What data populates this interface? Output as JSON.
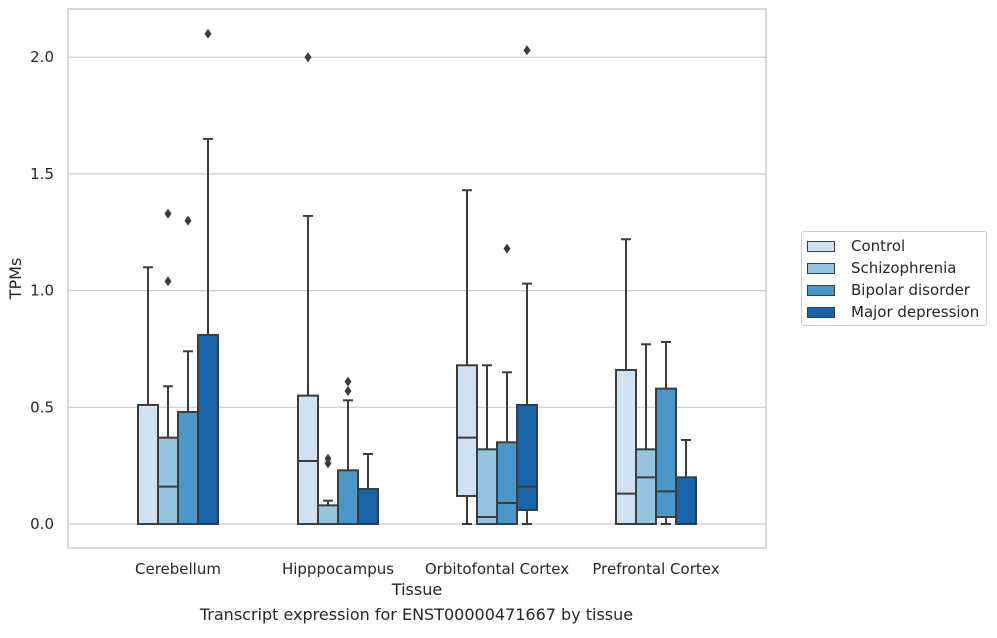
{
  "caption": "Transcript expression for ENST00000471667 by tissue",
  "chart_data": {
    "type": "box",
    "title": "",
    "xlabel": "Tissue",
    "ylabel": "TPMs",
    "ylim": [
      -0.1,
      2.22
    ],
    "yticks": [
      "0.0",
      "0.5",
      "1.0",
      "1.5",
      "2.0"
    ],
    "ytick_values": [
      0.0,
      0.5,
      1.0,
      1.5,
      2.0
    ],
    "grid": "horizontal",
    "legend_position": "right",
    "categories": [
      "Cerebellum",
      "Hipppocampus",
      "Orbitofontal Cortex",
      "Prefrontal Cortex"
    ],
    "series": [
      {
        "name": "Control",
        "color": "#d0e1f2",
        "boxes": [
          {
            "whislo": 0.0,
            "q1": 0.0,
            "med": 0.0,
            "q3": 0.51,
            "whishi": 1.1,
            "fliers": []
          },
          {
            "whislo": 0.0,
            "q1": 0.0,
            "med": 0.27,
            "q3": 0.55,
            "whishi": 1.32,
            "fliers": [
              2.0
            ]
          },
          {
            "whislo": 0.0,
            "q1": 0.12,
            "med": 0.37,
            "q3": 0.68,
            "whishi": 1.43,
            "fliers": []
          },
          {
            "whislo": 0.0,
            "q1": 0.0,
            "med": 0.13,
            "q3": 0.66,
            "whishi": 1.22,
            "fliers": []
          }
        ]
      },
      {
        "name": "Schizophrenia",
        "color": "#94c4df",
        "boxes": [
          {
            "whislo": 0.0,
            "q1": 0.0,
            "med": 0.16,
            "q3": 0.37,
            "whishi": 0.59,
            "fliers": [
              1.04,
              1.33
            ]
          },
          {
            "whislo": 0.0,
            "q1": 0.0,
            "med": 0.0,
            "q3": 0.08,
            "whishi": 0.1,
            "fliers": [
              0.26,
              0.28
            ]
          },
          {
            "whislo": 0.0,
            "q1": 0.0,
            "med": 0.03,
            "q3": 0.32,
            "whishi": 0.68,
            "fliers": []
          },
          {
            "whislo": 0.0,
            "q1": 0.0,
            "med": 0.2,
            "q3": 0.32,
            "whishi": 0.77,
            "fliers": []
          }
        ]
      },
      {
        "name": "Bipolar disorder",
        "color": "#4a98c9",
        "boxes": [
          {
            "whislo": 0.0,
            "q1": 0.0,
            "med": 0.0,
            "q3": 0.48,
            "whishi": 0.74,
            "fliers": [
              1.3
            ]
          },
          {
            "whislo": 0.0,
            "q1": 0.0,
            "med": 0.0,
            "q3": 0.23,
            "whishi": 0.53,
            "fliers": [
              0.57,
              0.61
            ]
          },
          {
            "whislo": 0.0,
            "q1": 0.0,
            "med": 0.09,
            "q3": 0.35,
            "whishi": 0.65,
            "fliers": [
              1.18
            ]
          },
          {
            "whislo": 0.0,
            "q1": 0.03,
            "med": 0.14,
            "q3": 0.58,
            "whishi": 0.78,
            "fliers": []
          }
        ]
      },
      {
        "name": "Major depression",
        "color": "#1764ab",
        "boxes": [
          {
            "whislo": 0.0,
            "q1": 0.0,
            "med": 0.0,
            "q3": 0.81,
            "whishi": 1.65,
            "fliers": [
              2.1
            ]
          },
          {
            "whislo": 0.0,
            "q1": 0.0,
            "med": 0.0,
            "q3": 0.15,
            "whishi": 0.3,
            "fliers": []
          },
          {
            "whislo": 0.0,
            "q1": 0.06,
            "med": 0.16,
            "q3": 0.51,
            "whishi": 1.03,
            "fliers": [
              2.03
            ]
          },
          {
            "whislo": 0.0,
            "q1": 0.0,
            "med": 0.0,
            "q3": 0.2,
            "whishi": 0.36,
            "fliers": []
          }
        ]
      }
    ]
  }
}
